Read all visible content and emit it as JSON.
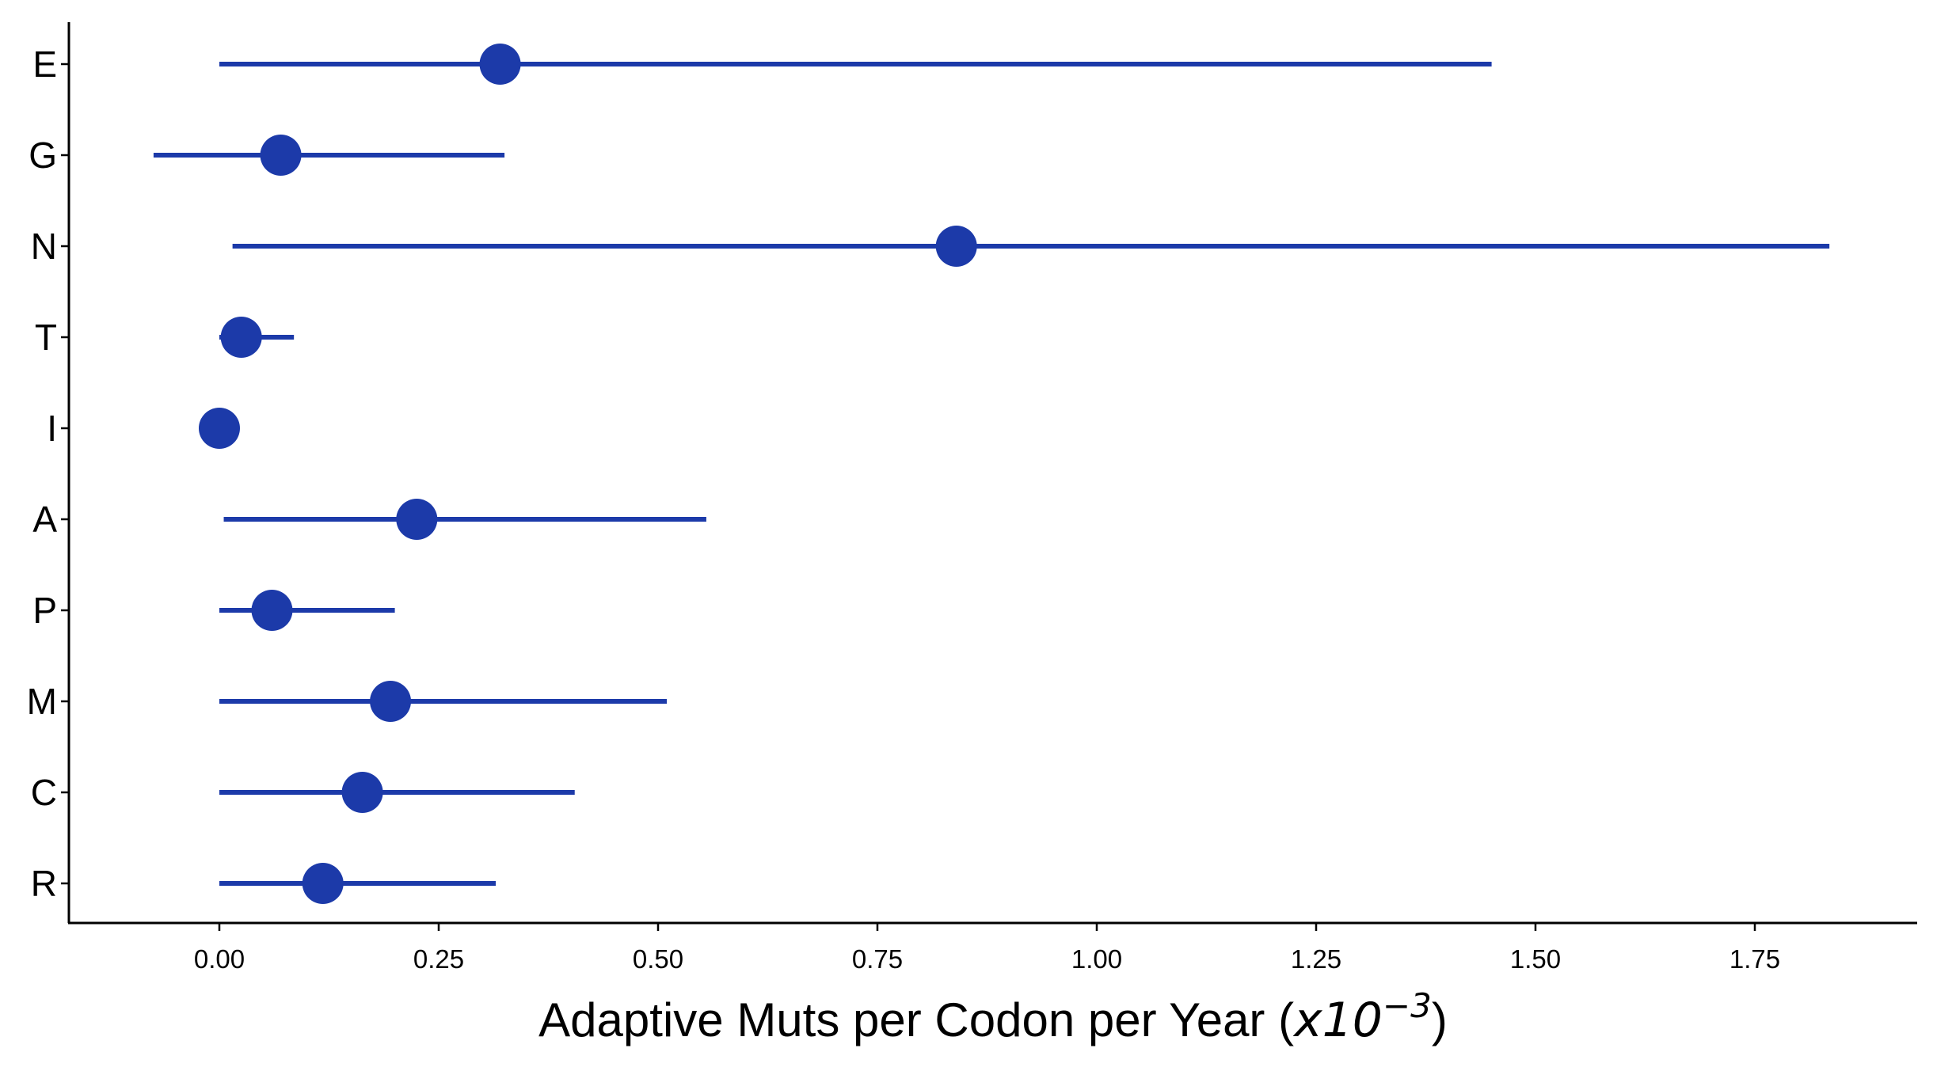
{
  "chart_data": {
    "type": "scatter",
    "subtype": "point-with-interval",
    "orientation": "horizontal",
    "color": "#1c3aa9",
    "categories": [
      "E",
      "G",
      "N",
      "T",
      "I",
      "A",
      "P",
      "M",
      "C",
      "R"
    ],
    "values": [
      0.32,
      0.07,
      0.84,
      0.025,
      0.0,
      0.225,
      0.06,
      0.195,
      0.163,
      0.118
    ],
    "lower": [
      0.0,
      -0.075,
      0.015,
      0.0,
      0.0,
      0.005,
      0.0,
      0.0,
      0.0,
      0.0
    ],
    "upper": [
      1.45,
      0.325,
      1.835,
      0.085,
      0.0,
      0.555,
      0.2,
      0.51,
      0.405,
      0.315
    ],
    "xlabel_prefix": "Adaptive Muts per Codon per Year (",
    "xlabel_var": "x10",
    "xlabel_exp": "−3",
    "xlabel_suffix": ")",
    "xticks": [
      "0.00",
      "0.25",
      "0.50",
      "0.75",
      "1.00",
      "1.25",
      "1.50",
      "1.75"
    ],
    "xtick_values": [
      0,
      0.25,
      0.5,
      0.75,
      1.0,
      1.25,
      1.5,
      1.75
    ],
    "xlim": [
      -0.17,
      1.93
    ],
    "grid": false,
    "legend": "none"
  }
}
